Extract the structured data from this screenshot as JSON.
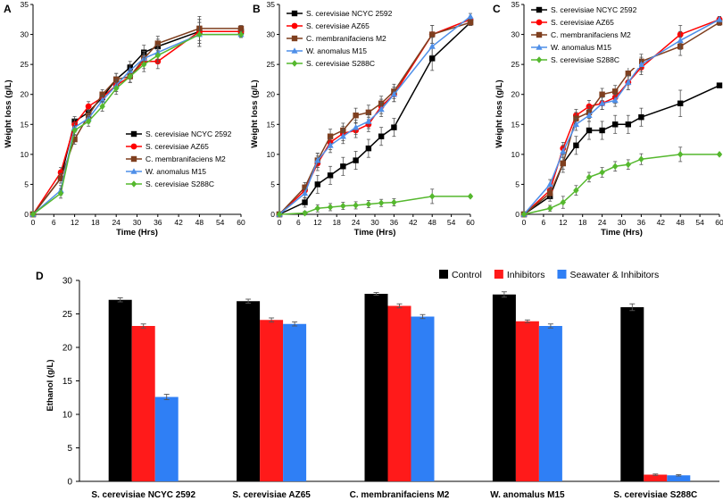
{
  "chart_data": [
    {
      "panel": "A",
      "type": "line",
      "xlabel": "Time (Hrs)",
      "ylabel": "Weight loss (g/L)",
      "xlim": [
        0,
        60
      ],
      "ylim": [
        0,
        35
      ],
      "xticks": [
        "0",
        "6",
        "12",
        "18",
        "24",
        "30",
        "36",
        "42",
        "48",
        "54",
        "60"
      ],
      "yticks": [
        "0",
        "5",
        "10",
        "15",
        "20",
        "25",
        "30",
        "35"
      ],
      "legend": "inside-bottom-right",
      "series": [
        {
          "name": "S. cerevisiae NCYC 2592",
          "color": "#000000",
          "marker": "square",
          "x": [
            0,
            8,
            12,
            16,
            20,
            24,
            28,
            32,
            36,
            48,
            60
          ],
          "y": [
            0,
            6,
            15.5,
            17,
            19.5,
            22.5,
            24.5,
            27,
            28,
            30.5,
            30.5
          ],
          "err": [
            0,
            0.8,
            0.8,
            0.8,
            0.8,
            1,
            1,
            1.2,
            1.2,
            2,
            0.5
          ]
        },
        {
          "name": "S. cerevisiae AZ65",
          "color": "#ff0000",
          "marker": "circle",
          "x": [
            0,
            8,
            12,
            16,
            20,
            24,
            28,
            32,
            36,
            48,
            60
          ],
          "y": [
            0,
            7,
            15,
            18,
            19.5,
            21.5,
            23,
            25.5,
            25.5,
            30.5,
            30.5
          ],
          "err": [
            0,
            0.8,
            0.8,
            0.8,
            0.8,
            1,
            1,
            1.2,
            1.2,
            2,
            0.5
          ]
        },
        {
          "name": "C. membranifaciens M2",
          "color": "#7f3f1f",
          "marker": "square",
          "x": [
            0,
            8,
            12,
            16,
            20,
            24,
            28,
            32,
            36,
            48,
            60
          ],
          "y": [
            0,
            6,
            12.5,
            16.5,
            20,
            22.5,
            23,
            26,
            28.5,
            31,
            31
          ],
          "err": [
            0,
            0.8,
            0.8,
            0.8,
            0.8,
            1,
            1,
            1.2,
            1.2,
            2,
            0.5
          ]
        },
        {
          "name": "W. anomalus M15",
          "color": "#4f8fe8",
          "marker": "triangle",
          "x": [
            0,
            8,
            12,
            16,
            20,
            24,
            28,
            32,
            36,
            48,
            60
          ],
          "y": [
            0,
            4,
            14.5,
            16,
            19,
            21.5,
            24,
            26,
            27,
            30,
            30
          ],
          "err": [
            0,
            0.8,
            0.8,
            0.8,
            0.8,
            1,
            1,
            1.2,
            1.2,
            2,
            0.5
          ]
        },
        {
          "name": "S. cerevisiae S288C",
          "color": "#55b82e",
          "marker": "diamond",
          "x": [
            0,
            8,
            12,
            16,
            20,
            24,
            28,
            32,
            36,
            48,
            60
          ],
          "y": [
            0,
            3.5,
            14,
            15.5,
            18,
            21,
            23,
            25,
            26.5,
            30,
            30
          ],
          "err": [
            0,
            0.8,
            0.8,
            0.8,
            0.8,
            1,
            1,
            1.2,
            1.2,
            2,
            0.5
          ]
        }
      ]
    },
    {
      "panel": "B",
      "type": "line",
      "xlabel": "Time (Hrs)",
      "ylabel": "Weight loss (g/L)",
      "xlim": [
        0,
        60
      ],
      "ylim": [
        0,
        35
      ],
      "xticks": [
        "0",
        "6",
        "12",
        "18",
        "24",
        "30",
        "36",
        "42",
        "48",
        "54",
        "60"
      ],
      "yticks": [
        "0",
        "5",
        "10",
        "15",
        "20",
        "25",
        "30",
        "35"
      ],
      "legend": "inside-top-left",
      "series": [
        {
          "name": "S. cerevisiae NCYC 2592",
          "color": "#000000",
          "marker": "square",
          "x": [
            0,
            8,
            12,
            16,
            20,
            24,
            28,
            32,
            36,
            48,
            60
          ],
          "y": [
            0,
            2,
            5,
            6.5,
            8,
            9,
            11,
            13,
            14.5,
            26,
            32
          ],
          "err": [
            0,
            0.8,
            1.5,
            1.5,
            1.5,
            1.5,
            1.5,
            1.5,
            1.5,
            2,
            0.5
          ]
        },
        {
          "name": "S. cerevisiae AZ65",
          "color": "#ff0000",
          "marker": "circle",
          "x": [
            0,
            8,
            12,
            16,
            20,
            24,
            28,
            32,
            36,
            48,
            60
          ],
          "y": [
            0,
            4,
            8.5,
            12,
            13.5,
            14,
            15,
            18,
            20,
            30,
            32.5
          ],
          "err": [
            0,
            0.8,
            1.2,
            1.2,
            1.2,
            1.2,
            1.2,
            1.2,
            1.2,
            1.5,
            0.5
          ]
        },
        {
          "name": "C. membranifaciens M2",
          "color": "#7f3f1f",
          "marker": "square",
          "x": [
            0,
            8,
            12,
            16,
            20,
            24,
            28,
            32,
            36,
            48,
            60
          ],
          "y": [
            0,
            4.5,
            9,
            13,
            14,
            16.5,
            17,
            18.5,
            20.5,
            30,
            32
          ],
          "err": [
            0,
            0.8,
            1.2,
            1.2,
            1.2,
            1.2,
            1.2,
            1.2,
            1.2,
            1.5,
            0.5
          ]
        },
        {
          "name": "W. anomalus M15",
          "color": "#4f8fe8",
          "marker": "triangle",
          "x": [
            0,
            8,
            12,
            16,
            20,
            24,
            28,
            32,
            36,
            48,
            60
          ],
          "y": [
            0,
            3.5,
            9,
            11.5,
            13,
            14.5,
            15.5,
            17.5,
            20,
            28,
            33
          ],
          "err": [
            0,
            0.8,
            1.2,
            1.2,
            1.2,
            1.2,
            1.2,
            1.2,
            1.2,
            1.5,
            0.5
          ]
        },
        {
          "name": "S. cerevisiae S288C",
          "color": "#55b82e",
          "marker": "diamond",
          "x": [
            0,
            8,
            12,
            16,
            20,
            24,
            28,
            32,
            36,
            48,
            60
          ],
          "y": [
            0,
            0.2,
            1,
            1.2,
            1.4,
            1.5,
            1.7,
            1.9,
            2,
            3,
            3
          ],
          "err": [
            0,
            0.3,
            0.6,
            0.6,
            0.6,
            0.6,
            0.6,
            0.6,
            0.6,
            1.2,
            0.2
          ]
        }
      ]
    },
    {
      "panel": "C",
      "type": "line",
      "xlabel": "Time (Hrs)",
      "ylabel": "Weight loss (g/L)",
      "xlim": [
        0,
        60
      ],
      "ylim": [
        0,
        35
      ],
      "xticks": [
        "0",
        "6",
        "12",
        "18",
        "24",
        "30",
        "36",
        "42",
        "48",
        "54",
        "60"
      ],
      "yticks": [
        "0",
        "5",
        "10",
        "15",
        "20",
        "25",
        "30",
        "35"
      ],
      "legend": "inside-top-left",
      "series": [
        {
          "name": "S. cerevisiae NCYC 2592",
          "color": "#000000",
          "marker": "square",
          "x": [
            0,
            8,
            12,
            16,
            20,
            24,
            28,
            32,
            36,
            48,
            60
          ],
          "y": [
            0,
            3,
            8.5,
            11.5,
            14,
            14,
            15,
            15,
            16.2,
            18.5,
            21.5
          ],
          "err": [
            0,
            0.8,
            1.5,
            1.5,
            1.5,
            1.5,
            1.5,
            1.5,
            1.5,
            2.2,
            0.3
          ]
        },
        {
          "name": "S. cerevisiae AZ65",
          "color": "#ff0000",
          "marker": "circle",
          "x": [
            0,
            8,
            12,
            16,
            20,
            24,
            28,
            32,
            36,
            48,
            60
          ],
          "y": [
            0,
            4,
            11,
            16.5,
            18,
            18.5,
            19.5,
            22,
            24.5,
            30,
            32.5
          ],
          "err": [
            0,
            0.8,
            1,
            1,
            1,
            1,
            1,
            1.2,
            1.2,
            1.5,
            0.5
          ]
        },
        {
          "name": "C. membranifaciens M2",
          "color": "#7f3f1f",
          "marker": "square",
          "x": [
            0,
            8,
            12,
            16,
            20,
            24,
            28,
            32,
            36,
            48,
            60
          ],
          "y": [
            0,
            3.5,
            8.5,
            16,
            17,
            20,
            20.5,
            23.5,
            25.5,
            28,
            32
          ],
          "err": [
            0,
            0.8,
            1,
            1,
            1,
            1,
            1,
            1.2,
            1.2,
            1.5,
            0.5
          ]
        },
        {
          "name": "W. anomalus M15",
          "color": "#4f8fe8",
          "marker": "triangle",
          "x": [
            0,
            8,
            12,
            16,
            20,
            24,
            28,
            32,
            36,
            48,
            60
          ],
          "y": [
            0,
            5,
            10.5,
            15,
            16.5,
            18.5,
            19,
            22,
            25,
            29,
            32.5
          ],
          "err": [
            0,
            0.8,
            1,
            1,
            1,
            1,
            1,
            1.2,
            1.2,
            1.5,
            0.5
          ]
        },
        {
          "name": "S. cerevisiae S288C",
          "color": "#55b82e",
          "marker": "diamond",
          "x": [
            0,
            8,
            12,
            16,
            20,
            24,
            28,
            32,
            36,
            48,
            60
          ],
          "y": [
            0,
            1,
            2,
            4,
            6.2,
            7,
            8,
            8.3,
            9.2,
            10,
            10
          ],
          "err": [
            0,
            0.5,
            1,
            0.8,
            0.8,
            0.8,
            0.8,
            0.8,
            0.9,
            1.2,
            0.2
          ]
        }
      ]
    },
    {
      "panel": "D",
      "type": "bar",
      "ylabel": "Ethanol (g/L)",
      "ylim": [
        0,
        30
      ],
      "yticks": [
        "0",
        "5",
        "10",
        "15",
        "20",
        "25",
        "30"
      ],
      "legend": "top-right",
      "categories": [
        "S. cerevisiae NCYC 2592",
        "S. cerevisiae AZ65",
        "C. membranifaciens M2",
        "W. anomalus M15",
        "S. cerevisiae S288C"
      ],
      "series": [
        {
          "name": "Control",
          "color": "#000000",
          "values": [
            27.1,
            26.9,
            28.0,
            27.9,
            26.0
          ],
          "err": [
            0.3,
            0.3,
            0.2,
            0.4,
            0.5
          ]
        },
        {
          "name": "Inhibitors",
          "color": "#ff1a1a",
          "values": [
            23.2,
            24.1,
            26.2,
            23.9,
            1.0
          ],
          "err": [
            0.3,
            0.3,
            0.3,
            0.2,
            0.1
          ]
        },
        {
          "name": "Seawater & Inhibitors",
          "color": "#2f7ff5",
          "values": [
            12.6,
            23.5,
            24.6,
            23.2,
            0.9
          ],
          "err": [
            0.4,
            0.3,
            0.3,
            0.3,
            0.1
          ]
        }
      ]
    }
  ]
}
